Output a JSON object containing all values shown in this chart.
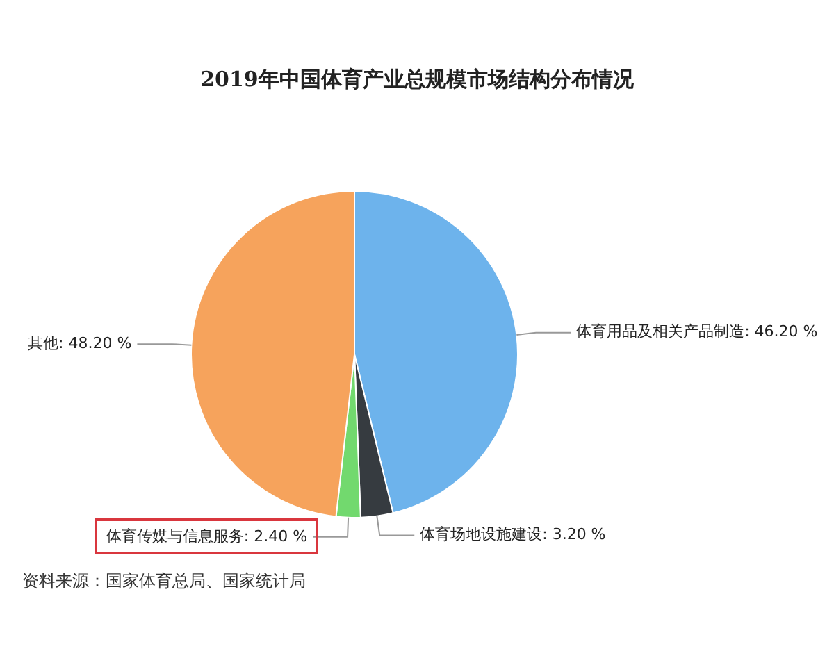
{
  "chart_data": {
    "type": "pie",
    "title": "2019年中国体育产业总规模市场结构分布情况",
    "categories": [
      "体育用品及相关产品制造",
      "体育场地设施建设",
      "体育传媒与信息服务",
      "其他"
    ],
    "values": [
      46.2,
      3.2,
      2.4,
      48.2
    ],
    "value_labels": [
      "46.20 %",
      "3.20 %",
      "2.40 %",
      "48.20 %"
    ],
    "colors": [
      "#6db3ec",
      "#363b40",
      "#72d96e",
      "#f6a35c"
    ],
    "annotations": [
      "资料来源：国家体育总局、国家统计局"
    ],
    "legend": false
  }
}
